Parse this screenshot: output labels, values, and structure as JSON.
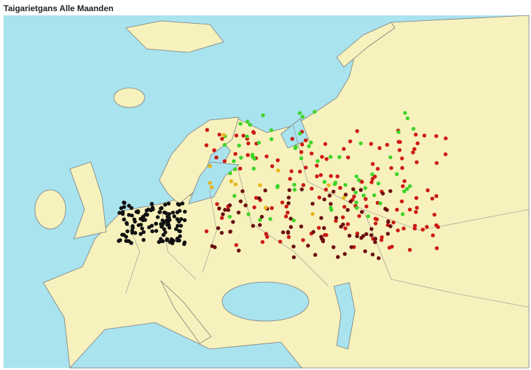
{
  "header": {
    "title": "Taigarietgans Alle Maanden"
  }
}
